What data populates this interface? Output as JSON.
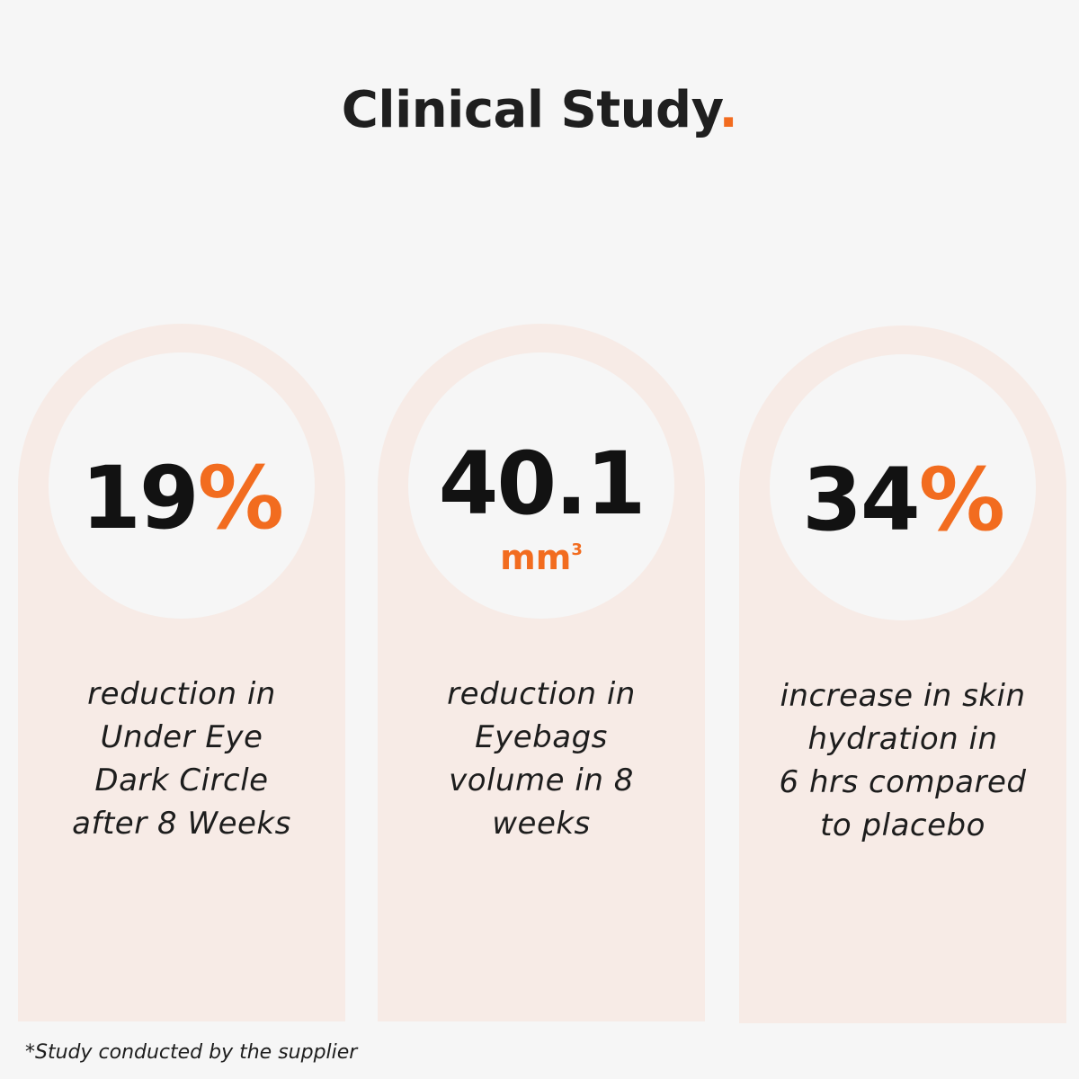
{
  "header": {
    "title": "Clinical Study",
    "title_dot": "."
  },
  "colors": {
    "accent": "#f26c1f",
    "card_bg": "#f7ebe6",
    "page_bg": "#f6f6f6"
  },
  "stats": [
    {
      "value": "19",
      "suffix": "%",
      "unit": "",
      "unit_sup": "",
      "lines": [
        "reduction in",
        "Under Eye",
        "Dark Circle",
        "after 8 Weeks"
      ]
    },
    {
      "value": "40.1",
      "suffix": "",
      "unit": "mm",
      "unit_sup": "3",
      "lines": [
        "reduction in",
        "Eyebags",
        "volume in 8",
        "weeks"
      ]
    },
    {
      "value": "34",
      "suffix": "%",
      "unit": "",
      "unit_sup": "",
      "lines": [
        "increase in skin",
        "hydration in",
        "6 hrs compared",
        "to placebo"
      ]
    }
  ],
  "footnote": "*Study conducted by the supplier"
}
